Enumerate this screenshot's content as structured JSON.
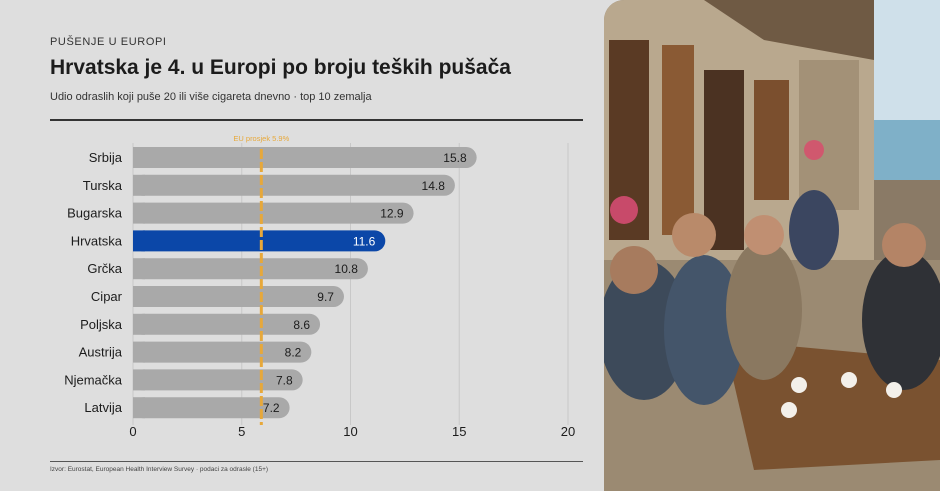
{
  "header": {
    "kicker": "PUŠENJE U EUROPI",
    "title": "Hrvatska je 4. u Europi po broju teških pušača",
    "subtitle": "Udio odraslih koji puše 20 ili više cigareta dnevno · top 10 zemalja"
  },
  "footer": {
    "source": "Izvor: Eurostat, European Health Interview Survey · podaci za odrasle (15+)"
  },
  "colors": {
    "bar": "#a9a9a9",
    "highlight": "#0b47a8",
    "reference": "#e7a83a",
    "text": "#1c1c1c"
  },
  "chart_data": {
    "type": "bar",
    "orientation": "horizontal",
    "categories": [
      "Srbija",
      "Turska",
      "Bugarska",
      "Hrvatska",
      "Grčka",
      "Cipar",
      "Poljska",
      "Austrija",
      "Njemačka",
      "Latvija"
    ],
    "values": [
      15.8,
      14.8,
      12.9,
      11.6,
      10.8,
      9.7,
      8.6,
      8.2,
      7.8,
      7.2
    ],
    "value_labels": [
      "15.8",
      "14.8",
      "12.9",
      "11.6",
      "10.8",
      "9.7",
      "8.6",
      "8.2",
      "7.8",
      "7.2"
    ],
    "highlight": "Hrvatska",
    "xlim": [
      0,
      20
    ],
    "xticks": [
      0,
      5,
      10,
      15,
      20
    ],
    "grid": true,
    "reference_line": {
      "value": 5.9,
      "label": "EU prosjek 5.9%"
    }
  },
  "photo": {
    "icon": "cafe-photo",
    "description_visible": false
  }
}
